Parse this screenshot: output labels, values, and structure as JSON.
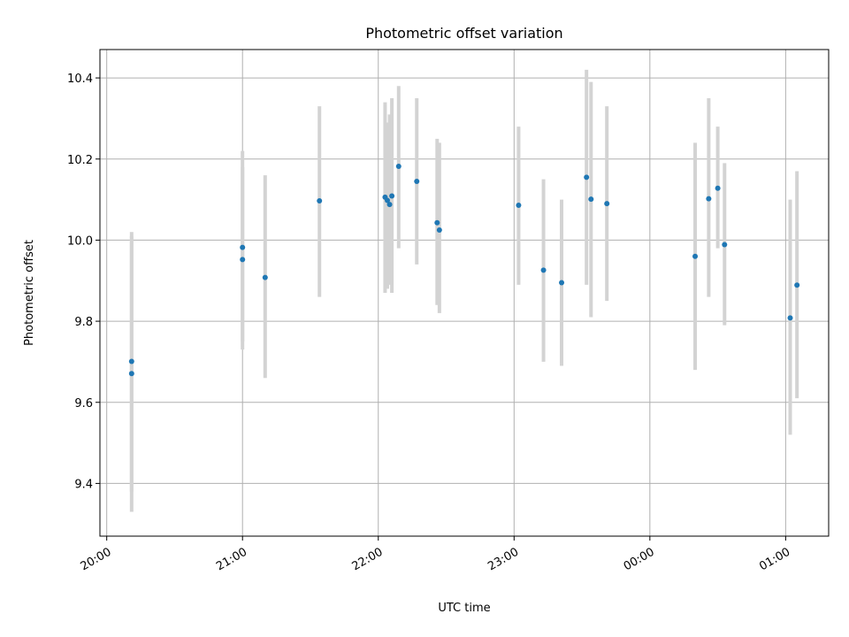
{
  "colors": {
    "point": "#1f77b4",
    "errorbar": "#d3d3d3",
    "grid": "#b0b0b0",
    "axis": "#000000"
  },
  "chart_data": {
    "type": "scatter",
    "title": "Photometric offset variation",
    "xlabel": "UTC time",
    "ylabel": "Photometric offset",
    "x_axis": "time",
    "xlim": [
      "19:57",
      "01:19"
    ],
    "ylim": [
      9.27,
      10.47
    ],
    "x_ticks": [
      "20:00",
      "21:00",
      "22:00",
      "23:00",
      "00:00",
      "01:00"
    ],
    "y_ticks": [
      "9.4",
      "9.6",
      "9.8",
      "10.0",
      "10.2",
      "10.4"
    ],
    "y_tick_values": [
      9.4,
      9.6,
      9.8,
      10.0,
      10.2,
      10.4
    ],
    "grid": true,
    "legend": "none",
    "x_tick_rotation": "30deg",
    "points": [
      {
        "x": "20:11",
        "y": 9.701,
        "low": 9.38,
        "high": 10.02
      },
      {
        "x": "20:11",
        "y": 9.671,
        "low": 9.33,
        "high": 10.01
      },
      {
        "x": "21:00",
        "y": 9.952,
        "low": 9.73,
        "high": 10.18
      },
      {
        "x": "21:00",
        "y": 9.982,
        "low": 9.75,
        "high": 10.22
      },
      {
        "x": "21:10",
        "y": 9.908,
        "low": 9.66,
        "high": 10.16
      },
      {
        "x": "21:34",
        "y": 10.097,
        "low": 9.86,
        "high": 10.33
      },
      {
        "x": "22:03",
        "y": 10.106,
        "low": 9.87,
        "high": 10.34
      },
      {
        "x": "22:04",
        "y": 10.098,
        "low": 9.88,
        "high": 10.29
      },
      {
        "x": "22:05",
        "y": 10.088,
        "low": 9.89,
        "high": 10.31
      },
      {
        "x": "22:06",
        "y": 10.109,
        "low": 9.87,
        "high": 10.35
      },
      {
        "x": "22:09",
        "y": 10.182,
        "low": 9.98,
        "high": 10.38
      },
      {
        "x": "22:17",
        "y": 10.145,
        "low": 9.94,
        "high": 10.35
      },
      {
        "x": "22:26",
        "y": 10.043,
        "low": 9.84,
        "high": 10.25
      },
      {
        "x": "22:27",
        "y": 10.025,
        "low": 9.82,
        "high": 10.24
      },
      {
        "x": "23:02",
        "y": 10.086,
        "low": 9.89,
        "high": 10.28
      },
      {
        "x": "23:13",
        "y": 9.926,
        "low": 9.7,
        "high": 10.15
      },
      {
        "x": "23:21",
        "y": 9.895,
        "low": 9.69,
        "high": 10.1
      },
      {
        "x": "23:32",
        "y": 10.155,
        "low": 9.89,
        "high": 10.42
      },
      {
        "x": "23:34",
        "y": 10.101,
        "low": 9.81,
        "high": 10.39
      },
      {
        "x": "23:41",
        "y": 10.09,
        "low": 9.85,
        "high": 10.33
      },
      {
        "x": "00:20",
        "y": 9.96,
        "low": 9.68,
        "high": 10.24
      },
      {
        "x": "00:26",
        "y": 10.102,
        "low": 9.86,
        "high": 10.35
      },
      {
        "x": "00:30",
        "y": 10.128,
        "low": 9.98,
        "high": 10.28
      },
      {
        "x": "00:33",
        "y": 9.989,
        "low": 9.79,
        "high": 10.19
      },
      {
        "x": "01:02",
        "y": 9.808,
        "low": 9.52,
        "high": 10.1
      },
      {
        "x": "01:05",
        "y": 9.889,
        "low": 9.61,
        "high": 10.17
      }
    ]
  }
}
